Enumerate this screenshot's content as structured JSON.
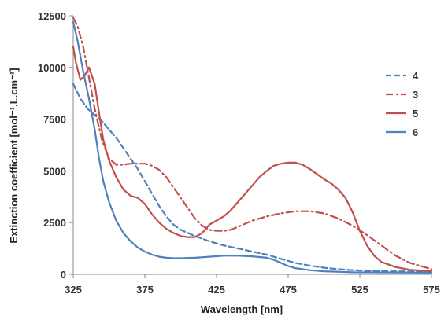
{
  "chart_data": {
    "type": "line",
    "title": "",
    "xlabel": "Wavelength [nm]",
    "ylabel": "Extinction coefficient  [mol⁻¹.L.cm⁻¹]",
    "xlim": [
      325,
      575
    ],
    "ylim": [
      0,
      12500
    ],
    "xticks": [
      325,
      375,
      425,
      475,
      525,
      575
    ],
    "yticks": [
      0,
      2500,
      5000,
      7500,
      10000,
      12500
    ],
    "grid": false,
    "legend_position": "right",
    "series": [
      {
        "name": "4",
        "color": "#4f81bd",
        "dash": "dashed",
        "points": [
          [
            325,
            9200
          ],
          [
            330,
            8500
          ],
          [
            335,
            8000
          ],
          [
            340,
            7700
          ],
          [
            345,
            7400
          ],
          [
            350,
            7000
          ],
          [
            355,
            6600
          ],
          [
            360,
            6100
          ],
          [
            365,
            5600
          ],
          [
            370,
            5100
          ],
          [
            375,
            4500
          ],
          [
            380,
            3900
          ],
          [
            385,
            3300
          ],
          [
            390,
            2800
          ],
          [
            395,
            2400
          ],
          [
            400,
            2150
          ],
          [
            410,
            1850
          ],
          [
            420,
            1600
          ],
          [
            430,
            1400
          ],
          [
            440,
            1250
          ],
          [
            450,
            1100
          ],
          [
            460,
            950
          ],
          [
            470,
            750
          ],
          [
            480,
            550
          ],
          [
            490,
            420
          ],
          [
            500,
            320
          ],
          [
            510,
            250
          ],
          [
            520,
            200
          ],
          [
            530,
            170
          ],
          [
            545,
            150
          ],
          [
            560,
            140
          ],
          [
            575,
            130
          ]
        ]
      },
      {
        "name": "3",
        "color": "#c0504d",
        "dash": "dashdot",
        "points": [
          [
            325,
            12400
          ],
          [
            328,
            12000
          ],
          [
            332,
            11000
          ],
          [
            336,
            9500
          ],
          [
            340,
            8000
          ],
          [
            345,
            6500
          ],
          [
            350,
            5600
          ],
          [
            355,
            5300
          ],
          [
            360,
            5300
          ],
          [
            365,
            5350
          ],
          [
            370,
            5350
          ],
          [
            375,
            5350
          ],
          [
            380,
            5250
          ],
          [
            385,
            5050
          ],
          [
            390,
            4700
          ],
          [
            395,
            4200
          ],
          [
            400,
            3700
          ],
          [
            405,
            3200
          ],
          [
            410,
            2700
          ],
          [
            415,
            2350
          ],
          [
            420,
            2150
          ],
          [
            425,
            2100
          ],
          [
            430,
            2100
          ],
          [
            435,
            2150
          ],
          [
            440,
            2300
          ],
          [
            450,
            2600
          ],
          [
            460,
            2800
          ],
          [
            470,
            2950
          ],
          [
            480,
            3050
          ],
          [
            490,
            3050
          ],
          [
            500,
            2950
          ],
          [
            510,
            2700
          ],
          [
            520,
            2350
          ],
          [
            530,
            1900
          ],
          [
            540,
            1400
          ],
          [
            550,
            900
          ],
          [
            560,
            550
          ],
          [
            575,
            250
          ]
        ]
      },
      {
        "name": "5",
        "color": "#c0504d",
        "dash": "solid",
        "points": [
          [
            325,
            11000
          ],
          [
            327,
            10200
          ],
          [
            330,
            9400
          ],
          [
            333,
            9600
          ],
          [
            336,
            10000
          ],
          [
            340,
            9200
          ],
          [
            343,
            7800
          ],
          [
            346,
            6500
          ],
          [
            350,
            5500
          ],
          [
            355,
            4700
          ],
          [
            360,
            4100
          ],
          [
            365,
            3800
          ],
          [
            370,
            3700
          ],
          [
            375,
            3400
          ],
          [
            380,
            2900
          ],
          [
            385,
            2500
          ],
          [
            390,
            2200
          ],
          [
            395,
            2000
          ],
          [
            400,
            1850
          ],
          [
            405,
            1800
          ],
          [
            410,
            1800
          ],
          [
            415,
            2000
          ],
          [
            420,
            2400
          ],
          [
            425,
            2600
          ],
          [
            430,
            2800
          ],
          [
            435,
            3100
          ],
          [
            440,
            3500
          ],
          [
            445,
            3900
          ],
          [
            450,
            4300
          ],
          [
            455,
            4700
          ],
          [
            460,
            5000
          ],
          [
            465,
            5250
          ],
          [
            470,
            5350
          ],
          [
            475,
            5400
          ],
          [
            480,
            5400
          ],
          [
            485,
            5300
          ],
          [
            490,
            5100
          ],
          [
            495,
            4850
          ],
          [
            500,
            4600
          ],
          [
            505,
            4400
          ],
          [
            510,
            4100
          ],
          [
            515,
            3700
          ],
          [
            520,
            3000
          ],
          [
            525,
            2100
          ],
          [
            530,
            1400
          ],
          [
            535,
            900
          ],
          [
            540,
            600
          ],
          [
            550,
            350
          ],
          [
            560,
            220
          ],
          [
            575,
            150
          ]
        ]
      },
      {
        "name": "6",
        "color": "#4f81bd",
        "dash": "solid",
        "points": [
          [
            325,
            12200
          ],
          [
            328,
            11300
          ],
          [
            332,
            9800
          ],
          [
            336,
            8500
          ],
          [
            340,
            7000
          ],
          [
            343,
            5600
          ],
          [
            346,
            4500
          ],
          [
            350,
            3500
          ],
          [
            355,
            2600
          ],
          [
            360,
            2000
          ],
          [
            365,
            1600
          ],
          [
            370,
            1300
          ],
          [
            375,
            1100
          ],
          [
            380,
            950
          ],
          [
            385,
            850
          ],
          [
            390,
            800
          ],
          [
            395,
            780
          ],
          [
            400,
            780
          ],
          [
            410,
            800
          ],
          [
            420,
            850
          ],
          [
            430,
            900
          ],
          [
            440,
            900
          ],
          [
            450,
            870
          ],
          [
            460,
            800
          ],
          [
            465,
            700
          ],
          [
            470,
            550
          ],
          [
            475,
            400
          ],
          [
            480,
            300
          ],
          [
            490,
            200
          ],
          [
            500,
            150
          ],
          [
            520,
            100
          ],
          [
            575,
            80
          ]
        ]
      }
    ]
  }
}
